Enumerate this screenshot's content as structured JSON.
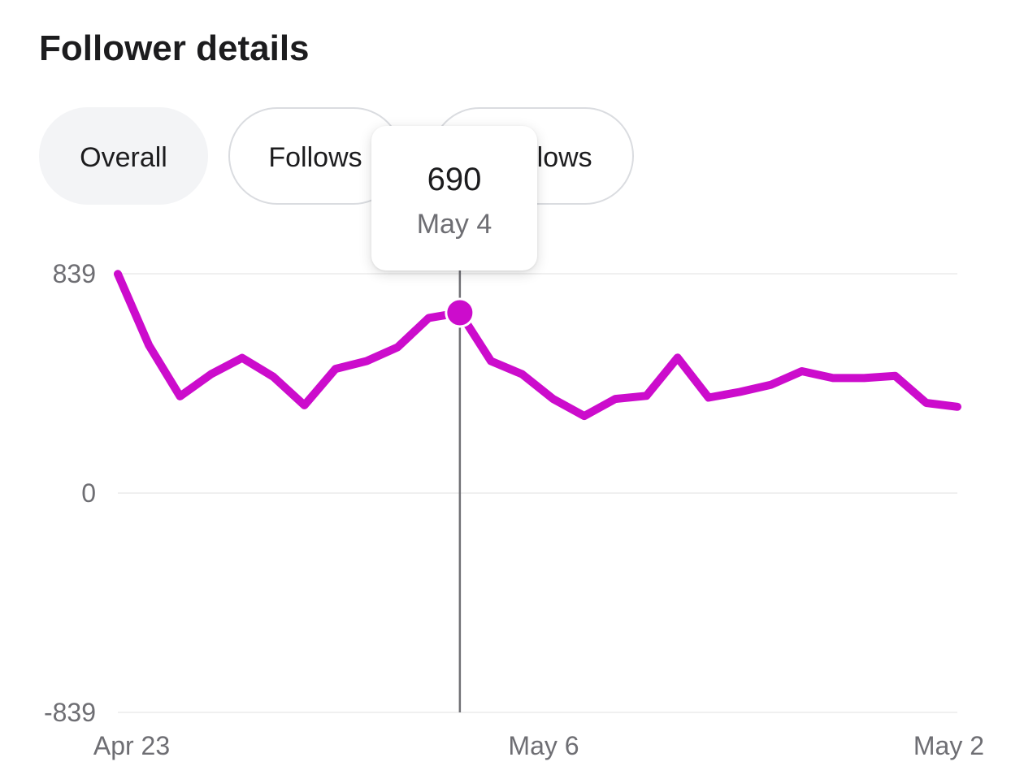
{
  "header": {
    "title": "Follower details"
  },
  "tabs": [
    {
      "label": "Overall",
      "active": true
    },
    {
      "label": "Follows",
      "active": false
    },
    {
      "label": "Unfollows",
      "active": false
    }
  ],
  "tooltip": {
    "value": "690",
    "date": "May 4"
  },
  "colors": {
    "line": "#cc0ccc",
    "grid": "#ececec",
    "crosshair": "#707075"
  },
  "chart_data": {
    "type": "line",
    "title": "",
    "xlabel": "",
    "ylabel": "",
    "ylim": [
      -839,
      839
    ],
    "yticks": [
      839,
      0,
      -839
    ],
    "ytick_labels": [
      "839",
      "0",
      "-839"
    ],
    "xtick_labels": [
      {
        "label": "Apr 23",
        "index": 0
      },
      {
        "label": "May 6",
        "index": 13
      },
      {
        "label": "May 2",
        "index": 27
      }
    ],
    "highlight_index": 11,
    "grid": true,
    "legend": "none",
    "series": [
      {
        "values": [
          838,
          565,
          370,
          455,
          517,
          445,
          336,
          475,
          505,
          558,
          670,
          690,
          505,
          455,
          360,
          295,
          360,
          372,
          518,
          365,
          387,
          414,
          466,
          440,
          440,
          448,
          345,
          330
        ]
      }
    ]
  }
}
